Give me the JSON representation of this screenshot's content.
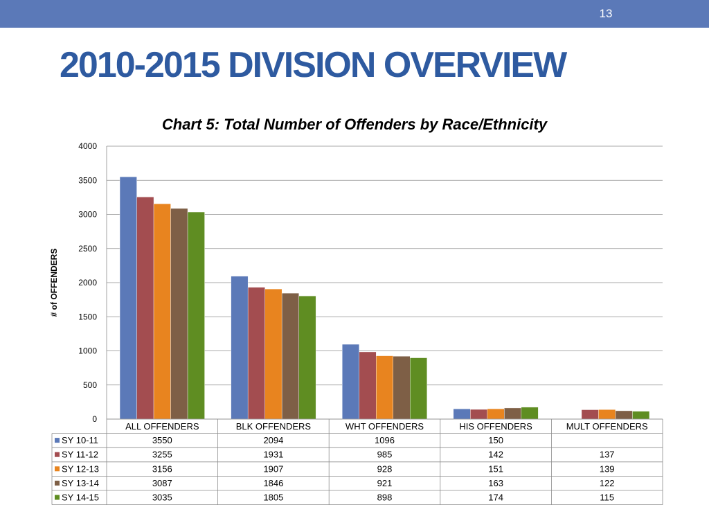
{
  "slide": {
    "page_number": "13",
    "title": "2010-2015 DIVISION OVERVIEW"
  },
  "chart_data": {
    "type": "bar",
    "title": "Chart 5:  Total Number of Offenders by Race/Ethnicity",
    "xlabel": "",
    "ylabel": "# of OFFENDERS",
    "ylim": [
      0,
      4000
    ],
    "yticks": [
      0,
      500,
      1000,
      1500,
      2000,
      2500,
      3000,
      3500,
      4000
    ],
    "grid": true,
    "legend_placement": "data-table-left",
    "categories": [
      "ALL OFFENDERS",
      "BLK OFFENDERS",
      "WHT OFFENDERS",
      "HIS OFFENDERS",
      "MULT OFFENDERS"
    ],
    "series": [
      {
        "name": "SY 10-11",
        "color": "#5b79b8",
        "values": [
          3550,
          2094,
          1096,
          150,
          null
        ]
      },
      {
        "name": "SY 11-12",
        "color": "#a34d50",
        "values": [
          3255,
          1931,
          985,
          142,
          137
        ]
      },
      {
        "name": "SY 12-13",
        "color": "#e8841f",
        "values": [
          3156,
          1907,
          928,
          151,
          139
        ]
      },
      {
        "name": "SY 13-14",
        "color": "#7e5f46",
        "values": [
          3087,
          1846,
          921,
          163,
          122
        ]
      },
      {
        "name": "SY 14-15",
        "color": "#5f8d22",
        "values": [
          3035,
          1805,
          898,
          174,
          115
        ]
      }
    ]
  }
}
